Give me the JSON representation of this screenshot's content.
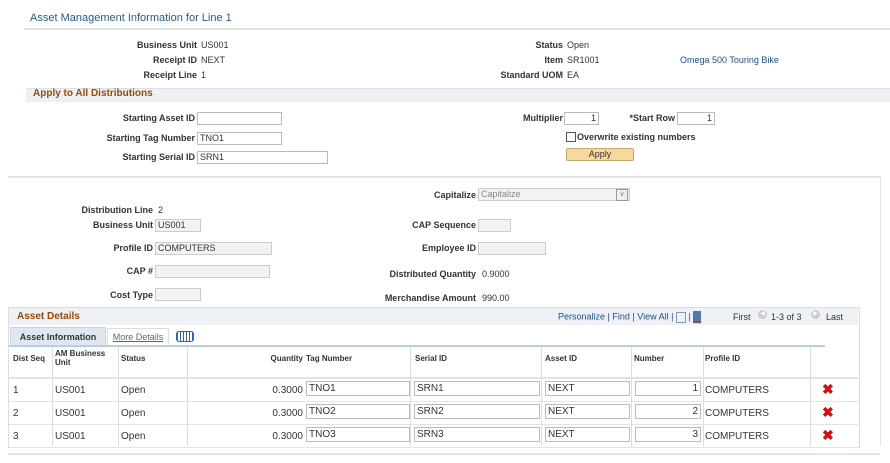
{
  "title": "Asset Management Information for Line 1",
  "header": {
    "business_unit_label": "Business Unit",
    "business_unit": "US001",
    "receipt_id_label": "Receipt ID",
    "receipt_id": "NEXT",
    "receipt_line_label": "Receipt Line",
    "receipt_line": "1",
    "status_label": "Status",
    "status": "Open",
    "item_label": "Item",
    "item": "SR1001",
    "item_desc": "Omega 500 Touring Bike",
    "uom_label": "Standard UOM",
    "uom": "EA"
  },
  "apply": {
    "section_title": "Apply to All Distributions",
    "asset_id_label": "Starting Asset ID",
    "asset_id": "",
    "tag_label": "Starting Tag Number",
    "tag": "TNO1",
    "serial_label": "Starting Serial ID",
    "serial": "SRN1",
    "multiplier_label": "Multiplier",
    "multiplier": "1",
    "start_row_label": "*Start Row",
    "start_row": "1",
    "overwrite_label": "Overwrite existing numbers",
    "overwrite_checked": false,
    "apply_button": "Apply"
  },
  "distribution": {
    "capitalize_label": "Capitalize",
    "capitalize": "Capitalize",
    "dist_line_label": "Distribution Line",
    "dist_line": "2",
    "bu_label": "Business Unit",
    "bu": "US001",
    "profile_label": "Profile ID",
    "profile": "COMPUTERS",
    "cap_label": "CAP #",
    "cap": "",
    "cost_type_label": "Cost Type",
    "cost_type": "",
    "cap_seq_label": "CAP Sequence",
    "cap_seq": "",
    "employee_label": "Employee ID",
    "employee": "",
    "dist_qty_label": "Distributed Quantity",
    "dist_qty": "0.9000",
    "merch_label": "Merchandise Amount",
    "merch": "990.00"
  },
  "grid": {
    "title": "Asset Details",
    "personalize": "Personalize",
    "find": "Find",
    "view_all": "View All",
    "first": "First",
    "range": "1-3 of 3",
    "last": "Last",
    "tabs": [
      "Asset Information",
      "More Details"
    ],
    "columns": [
      "Dist Seq",
      "AM Business Unit",
      "Status",
      "Quantity",
      "Tag Number",
      "Serial ID",
      "Asset ID",
      "Number",
      "Profile ID"
    ],
    "rows": [
      {
        "seq": "1",
        "bu": "US001",
        "status": "Open",
        "qty": "0.3000",
        "tag": "TNO1",
        "serial": "SRN1",
        "asset": "NEXT",
        "number": "1",
        "profile": "COMPUTERS"
      },
      {
        "seq": "2",
        "bu": "US001",
        "status": "Open",
        "qty": "0.3000",
        "tag": "TNO2",
        "serial": "SRN2",
        "asset": "NEXT",
        "number": "2",
        "profile": "COMPUTERS"
      },
      {
        "seq": "3",
        "bu": "US001",
        "status": "Open",
        "qty": "0.3000",
        "tag": "TNO3",
        "serial": "SRN3",
        "asset": "NEXT",
        "number": "3",
        "profile": "COMPUTERS"
      }
    ]
  },
  "colors": {
    "title": "#2a5a8a",
    "section": "#9b4a00",
    "link": "#1f4e8c",
    "delete": "#cc1111",
    "apply_btn": "#f7d9a0"
  }
}
